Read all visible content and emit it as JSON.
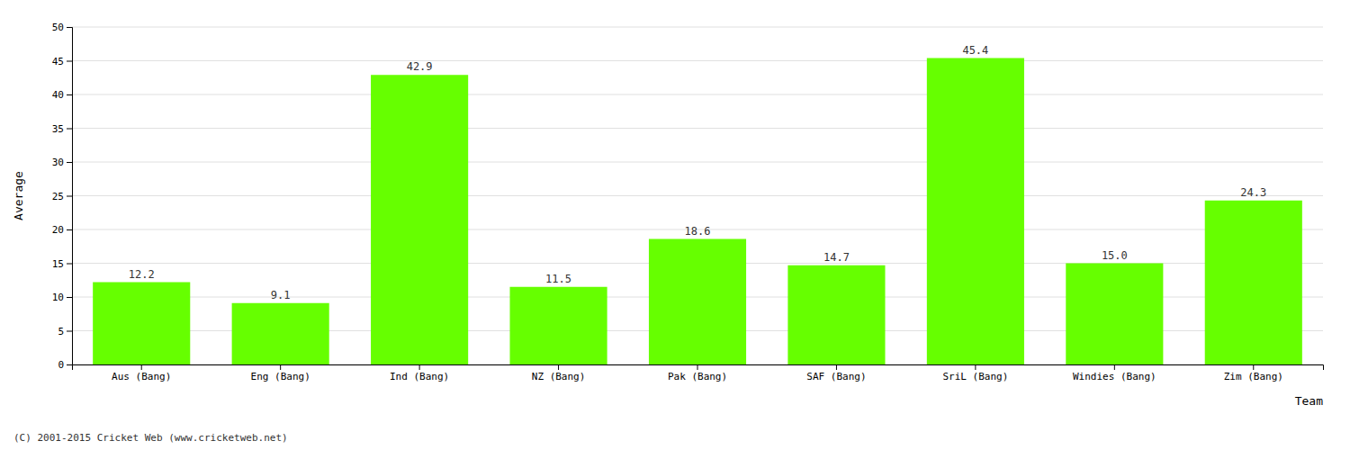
{
  "chart_data": {
    "type": "bar",
    "categories": [
      "Aus (Bang)",
      "Eng (Bang)",
      "Ind (Bang)",
      "NZ (Bang)",
      "Pak (Bang)",
      "SAF (Bang)",
      "SriL (Bang)",
      "Windies (Bang)",
      "Zim (Bang)"
    ],
    "values": [
      12.2,
      9.1,
      42.9,
      11.5,
      18.6,
      14.7,
      45.4,
      15.0,
      24.3
    ],
    "value_labels": [
      "12.2",
      "9.1",
      "42.9",
      "11.5",
      "18.6",
      "14.7",
      "45.4",
      "15.0",
      "24.3"
    ],
    "data_labels": true,
    "color": "#66ff00",
    "xlabel": "Team",
    "ylabel": "Average",
    "ylim": [
      0,
      50
    ],
    "yticks": [
      0,
      5,
      10,
      15,
      20,
      25,
      30,
      35,
      40,
      45,
      50
    ],
    "grid": true,
    "footnote": "(C) 2001-2015 Cricket Web (www.cricketweb.net)"
  }
}
